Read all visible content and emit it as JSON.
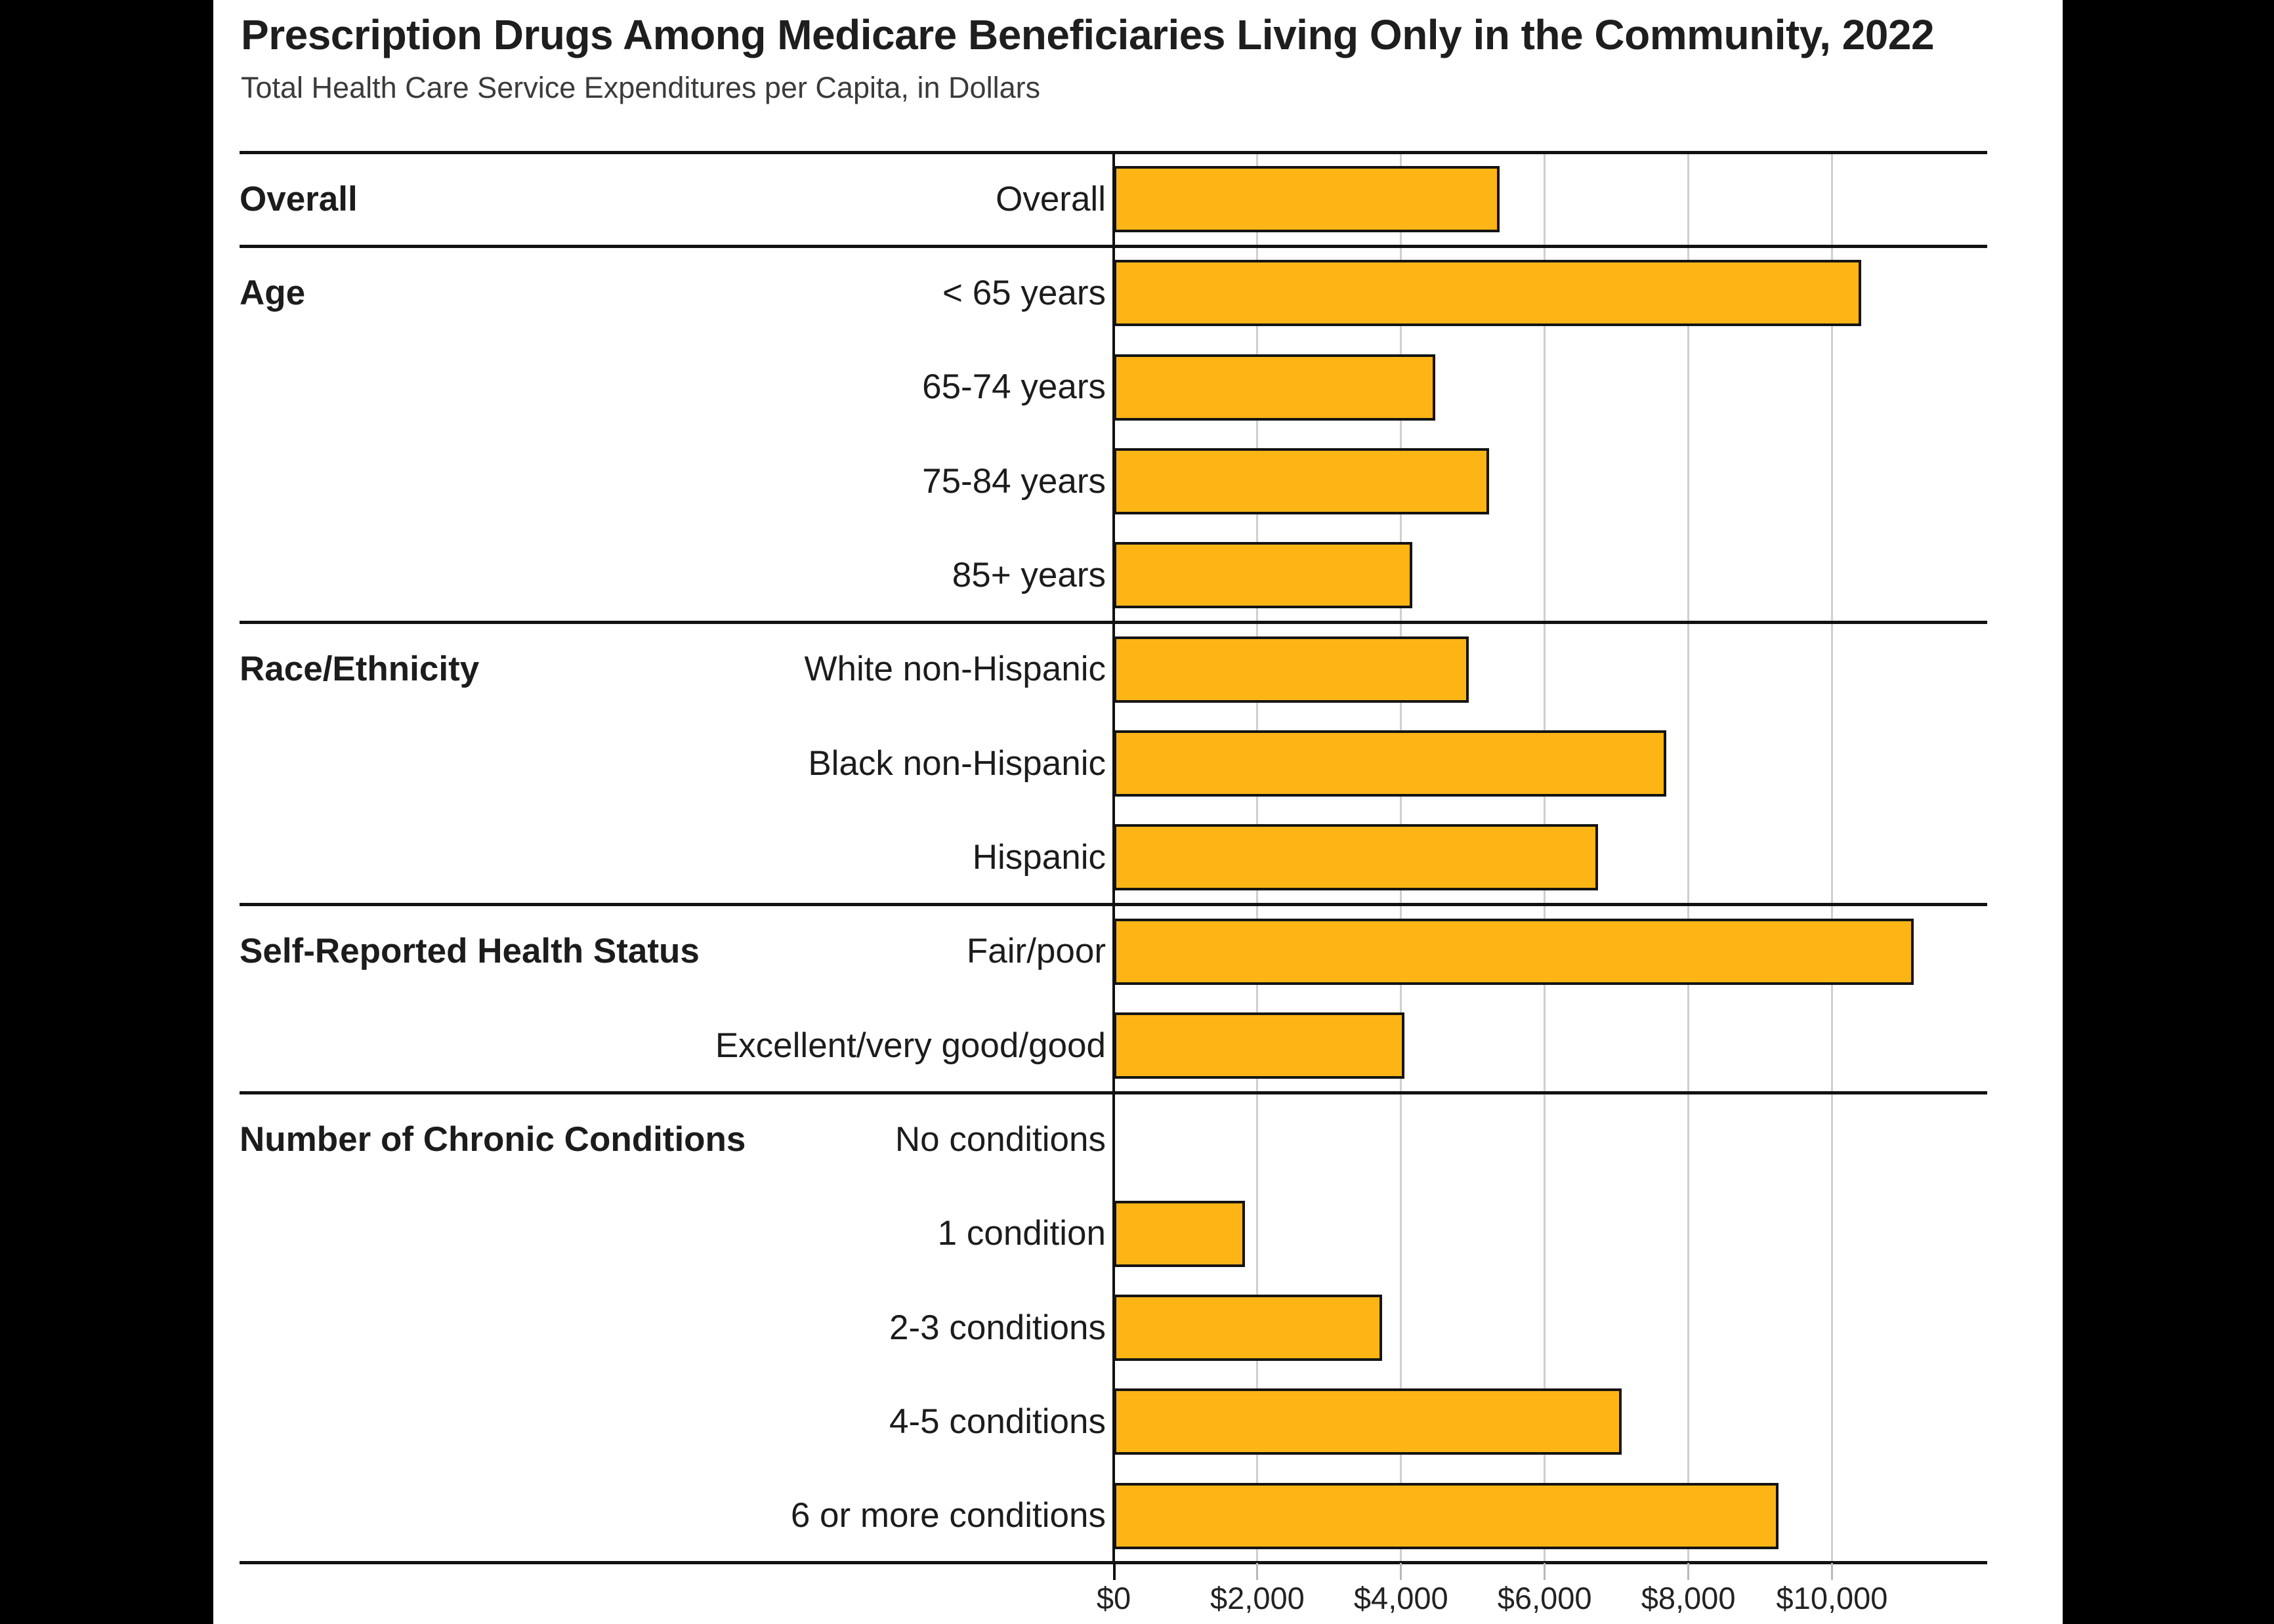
{
  "frame": {
    "background_color": "#000000",
    "panel_color": "#ffffff",
    "text_color": "#1c1c1c"
  },
  "header": {
    "title": "Prescription Drugs Among Medicare Beneficiaries Living Only in the Community, 2022",
    "subtitle": "Total Health Care Service Expenditures per Capita, in Dollars"
  },
  "chart_data": {
    "type": "bar",
    "orientation": "horizontal",
    "title": "Prescription Drugs Among Medicare Beneficiaries Living Only in the Community, 2022",
    "xlabel": "Total Health Care Service Expenditures per Capita, in Dollars",
    "ylabel": "",
    "xlim": [
      0,
      12150
    ],
    "grid": "vertical-gridlines-on",
    "bar_color": "#FCB515",
    "bar_border_color": "#141414",
    "gridline_color": "#cfcfcf",
    "axis_ticks": [
      {
        "value": 0,
        "label": "$0"
      },
      {
        "value": 2000,
        "label": "$2,000"
      },
      {
        "value": 4000,
        "label": "$4,000"
      },
      {
        "value": 6000,
        "label": "$6,000"
      },
      {
        "value": 8000,
        "label": "$8,000"
      },
      {
        "value": 10000,
        "label": "$10,000"
      }
    ],
    "groups": [
      {
        "label": "Overall",
        "rows": [
          {
            "label": "Overall",
            "value": 5300
          }
        ]
      },
      {
        "label": "Age",
        "rows": [
          {
            "label": "< 65 years",
            "value": 10330
          },
          {
            "label": "65-74 years",
            "value": 4400
          },
          {
            "label": "75-84 years",
            "value": 5150
          },
          {
            "label": "85+ years",
            "value": 4080
          }
        ]
      },
      {
        "label": "Race/Ethnicity",
        "rows": [
          {
            "label": "White non-Hispanic",
            "value": 4870
          },
          {
            "label": "Black non-Hispanic",
            "value": 7620
          },
          {
            "label": "Hispanic",
            "value": 6670
          }
        ]
      },
      {
        "label": "Self-Reported Health Status",
        "rows": [
          {
            "label": "Fair/poor",
            "value": 11060
          },
          {
            "label": "Excellent/very good/good",
            "value": 3970
          }
        ]
      },
      {
        "label": "Number of Chronic Conditions",
        "rows": [
          {
            "label": "No conditions",
            "value": 0
          },
          {
            "label": "1 condition",
            "value": 1750
          },
          {
            "label": "2-3 conditions",
            "value": 3660
          },
          {
            "label": "4-5 conditions",
            "value": 7000
          },
          {
            "label": "6 or more conditions",
            "value": 9180
          }
        ]
      }
    ]
  }
}
